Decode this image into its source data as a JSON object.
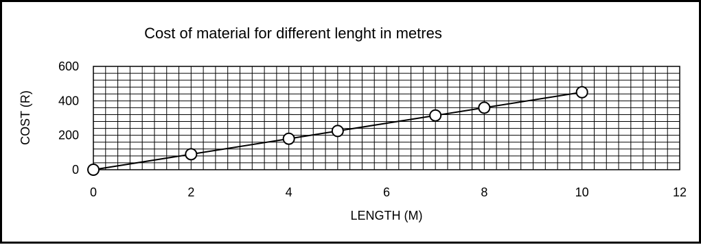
{
  "chart_data": {
    "type": "scatter",
    "title": "Cost of material for different lenght in metres",
    "xlabel": "LENGTH (M)",
    "ylabel": "COST (R)",
    "xlim": [
      0,
      12
    ],
    "ylim": [
      0,
      600
    ],
    "x_ticks": [
      0,
      2,
      4,
      6,
      8,
      10,
      12
    ],
    "y_ticks": [
      0,
      200,
      400,
      600
    ],
    "x_tick_labels": [
      "0",
      "2",
      "4",
      "6",
      "8",
      "10",
      "12"
    ],
    "y_tick_labels": [
      "0",
      "200",
      "400",
      "600"
    ],
    "grid": true,
    "legend": "none",
    "marker": "open-circle",
    "connected_with_line": true,
    "series": [
      {
        "x": [
          0,
          2,
          4,
          5,
          7,
          8,
          10
        ],
        "y": [
          0,
          90,
          180,
          225,
          315,
          360,
          450
        ]
      }
    ],
    "colors": {
      "line": "#000000",
      "marker_fill": "#ffffff",
      "grid": "#000000"
    }
  }
}
